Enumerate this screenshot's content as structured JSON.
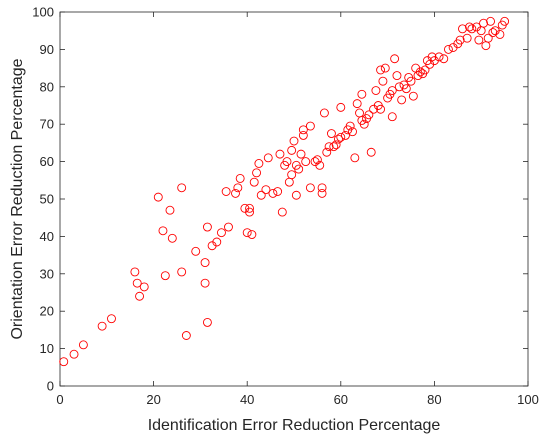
{
  "chart_data": {
    "type": "scatter",
    "title": "",
    "xlabel": "Identification Error Reduction Percentage",
    "ylabel": "Orientation Error Reduction Percentage",
    "xlim": [
      0,
      100
    ],
    "ylim": [
      0,
      100
    ],
    "xticks": [
      0,
      20,
      40,
      60,
      80,
      100
    ],
    "yticks": [
      0,
      10,
      20,
      30,
      40,
      50,
      60,
      70,
      80,
      90,
      100
    ],
    "grid": false,
    "marker": "open-circle",
    "marker_color": "#ff0000",
    "series": [
      {
        "points": [
          [
            0.8,
            6.5
          ],
          [
            3,
            8.5
          ],
          [
            5,
            11
          ],
          [
            9,
            16
          ],
          [
            11,
            18
          ],
          [
            16,
            30.5
          ],
          [
            16.5,
            27.5
          ],
          [
            17,
            24
          ],
          [
            18,
            26.5
          ],
          [
            21,
            50.5
          ],
          [
            22,
            41.5
          ],
          [
            22.5,
            29.5
          ],
          [
            23.5,
            47
          ],
          [
            24,
            39.5
          ],
          [
            26,
            53
          ],
          [
            26,
            30.5
          ],
          [
            27,
            13.5
          ],
          [
            29,
            36
          ],
          [
            31,
            27.5
          ],
          [
            31.5,
            17
          ],
          [
            31,
            33
          ],
          [
            31.5,
            42.5
          ],
          [
            32.5,
            37.5
          ],
          [
            33.5,
            38.5
          ],
          [
            34.5,
            41
          ],
          [
            35.5,
            52
          ],
          [
            36,
            42.5
          ],
          [
            37.5,
            51.5
          ],
          [
            38,
            53
          ],
          [
            38.5,
            55.5
          ],
          [
            39.5,
            47.5
          ],
          [
            40,
            41
          ],
          [
            40.5,
            47.5
          ],
          [
            40.5,
            46.5
          ],
          [
            41,
            40.5
          ],
          [
            41.5,
            54.5
          ],
          [
            42,
            57
          ],
          [
            42.5,
            59.5
          ],
          [
            43,
            51
          ],
          [
            44,
            52.5
          ],
          [
            44.5,
            61
          ],
          [
            45.5,
            51.5
          ],
          [
            46.5,
            52
          ],
          [
            47,
            62
          ],
          [
            47.5,
            46.5
          ],
          [
            48,
            59
          ],
          [
            48.5,
            60
          ],
          [
            49,
            54.5
          ],
          [
            49.5,
            56.5
          ],
          [
            49.5,
            63
          ],
          [
            50,
            65.5
          ],
          [
            50.5,
            59
          ],
          [
            50.5,
            51
          ],
          [
            51,
            58
          ],
          [
            51.5,
            62
          ],
          [
            52,
            67
          ],
          [
            52,
            68.5
          ],
          [
            52.5,
            60
          ],
          [
            53.5,
            69.5
          ],
          [
            53.5,
            53
          ],
          [
            54.5,
            60
          ],
          [
            55,
            60.5
          ],
          [
            55.5,
            59
          ],
          [
            56,
            51.5
          ],
          [
            56,
            53
          ],
          [
            56.5,
            73
          ],
          [
            57,
            62.5
          ],
          [
            57.5,
            64
          ],
          [
            58,
            67.5
          ],
          [
            58.5,
            64
          ],
          [
            59,
            64.5
          ],
          [
            59.5,
            66
          ],
          [
            60,
            74.5
          ],
          [
            60,
            66.5
          ],
          [
            61,
            67
          ],
          [
            61.5,
            68.5
          ],
          [
            62,
            69.5
          ],
          [
            62.5,
            68
          ],
          [
            63,
            61
          ],
          [
            63.5,
            75.5
          ],
          [
            64,
            73
          ],
          [
            64.5,
            78
          ],
          [
            64.5,
            71
          ],
          [
            65,
            70
          ],
          [
            65.5,
            71.5
          ],
          [
            66,
            72.5
          ],
          [
            66.5,
            62.5
          ],
          [
            67,
            74
          ],
          [
            67.5,
            79
          ],
          [
            68,
            75
          ],
          [
            68.5,
            74
          ],
          [
            68.5,
            84.5
          ],
          [
            69,
            81.5
          ],
          [
            69.5,
            85
          ],
          [
            70,
            77
          ],
          [
            70.5,
            78
          ],
          [
            71,
            79
          ],
          [
            71,
            72
          ],
          [
            71.5,
            87.5
          ],
          [
            72,
            83
          ],
          [
            72.5,
            80
          ],
          [
            73,
            76.5
          ],
          [
            73.5,
            80.5
          ],
          [
            74,
            79.5
          ],
          [
            74.5,
            82.5
          ],
          [
            75,
            81.5
          ],
          [
            75.5,
            77.5
          ],
          [
            76,
            85
          ],
          [
            76.5,
            83
          ],
          [
            77,
            84
          ],
          [
            77.5,
            83.5
          ],
          [
            78,
            84.5
          ],
          [
            78.5,
            87
          ],
          [
            79,
            86
          ],
          [
            79.5,
            88
          ],
          [
            80,
            87
          ],
          [
            81,
            88
          ],
          [
            82,
            87.5
          ],
          [
            83,
            90
          ],
          [
            84,
            90.5
          ],
          [
            85,
            91.5
          ],
          [
            85.5,
            92.5
          ],
          [
            86,
            95.5
          ],
          [
            87,
            93
          ],
          [
            87.5,
            96
          ],
          [
            88,
            95.5
          ],
          [
            89,
            96
          ],
          [
            89.5,
            92.5
          ],
          [
            90,
            95
          ],
          [
            90.5,
            97
          ],
          [
            91,
            91
          ],
          [
            91.5,
            93
          ],
          [
            92,
            97.5
          ],
          [
            92.5,
            94.5
          ],
          [
            93,
            95
          ],
          [
            94,
            94
          ],
          [
            94.5,
            96.5
          ],
          [
            95,
            97.5
          ]
        ]
      }
    ]
  }
}
